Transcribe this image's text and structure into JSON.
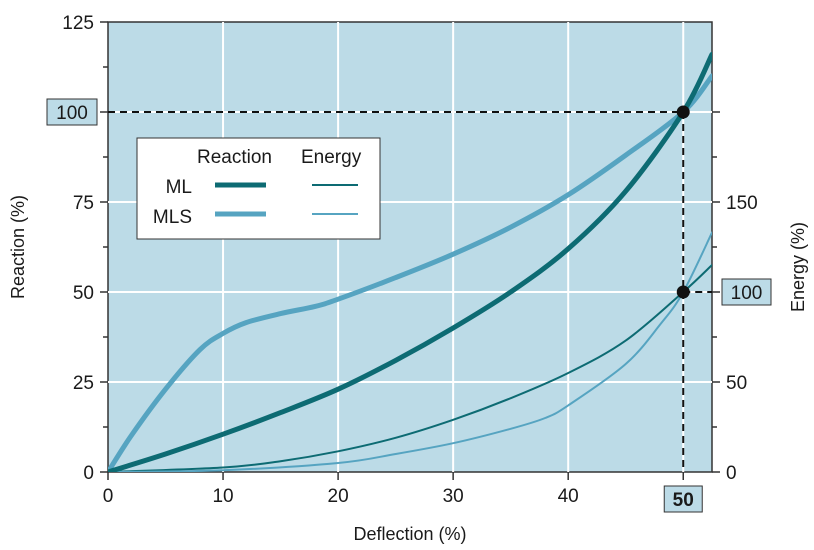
{
  "chart_data": {
    "type": "line",
    "xlabel": "Deflection (%)",
    "ylabel": "Reaction (%)",
    "y2label": "Energy (%)",
    "xlim": [
      0,
      52.5
    ],
    "ylim": [
      0,
      125
    ],
    "y2lim": [
      0,
      250
    ],
    "x_ticks": [
      0,
      10,
      20,
      30,
      40,
      50
    ],
    "x_tick_labels": [
      "0",
      "10",
      "20",
      "30",
      "40",
      ""
    ],
    "y_ticks": [
      0,
      25,
      50,
      75,
      100,
      125
    ],
    "y_tick_labels": [
      "0",
      "25",
      "50",
      "75",
      "",
      "125"
    ],
    "y2_ticks": [
      0,
      50,
      100,
      150
    ],
    "y2_tick_labels": [
      "0",
      "50",
      "",
      "150"
    ],
    "grid": true,
    "legend": {
      "placement": "top-left",
      "col_headers": [
        "Reaction",
        "Energy"
      ],
      "rows": [
        "ML",
        "MLS"
      ]
    },
    "highlights": {
      "x": "50",
      "y": "100",
      "y2": "100"
    },
    "markers": [
      {
        "x": 50,
        "y": 100
      },
      {
        "x": 50,
        "y": 50
      }
    ],
    "colors": {
      "background": "#bcdbe7",
      "ml": "#0d6b73",
      "mls": "#56a4c1",
      "highlight_box": "#bcdbe7"
    },
    "series": [
      {
        "name": "ML",
        "kind": "reaction",
        "x": [
          0,
          5,
          10,
          15,
          20,
          25,
          30,
          35,
          40,
          45,
          50,
          52.5
        ],
        "y": [
          0,
          5,
          10.5,
          16.5,
          23,
          31,
          40,
          50,
          62,
          78,
          100,
          116
        ]
      },
      {
        "name": "MLS",
        "kind": "reaction",
        "x": [
          0,
          2,
          5,
          8,
          10,
          12,
          15,
          18,
          20,
          25,
          30,
          35,
          40,
          45,
          50,
          52.5
        ],
        "y": [
          0,
          10,
          23,
          34,
          38.5,
          41.5,
          44,
          46,
          48,
          54,
          60.5,
          68,
          77,
          88,
          100,
          110
        ]
      },
      {
        "name": "ML",
        "kind": "energy",
        "x": [
          0,
          10,
          15,
          20,
          25,
          30,
          35,
          40,
          45,
          50,
          52.5
        ],
        "y": [
          0,
          2.5,
          6,
          11.5,
          19,
          29,
          41,
          55,
          73,
          100,
          115
        ]
      },
      {
        "name": "MLS",
        "kind": "energy",
        "x": [
          0,
          10,
          20,
          25,
          30,
          35,
          38,
          40,
          45,
          48,
          50,
          52.5
        ],
        "y": [
          0,
          1,
          5,
          10,
          16,
          24,
          30,
          37,
          60,
          82,
          100,
          133
        ]
      }
    ]
  }
}
